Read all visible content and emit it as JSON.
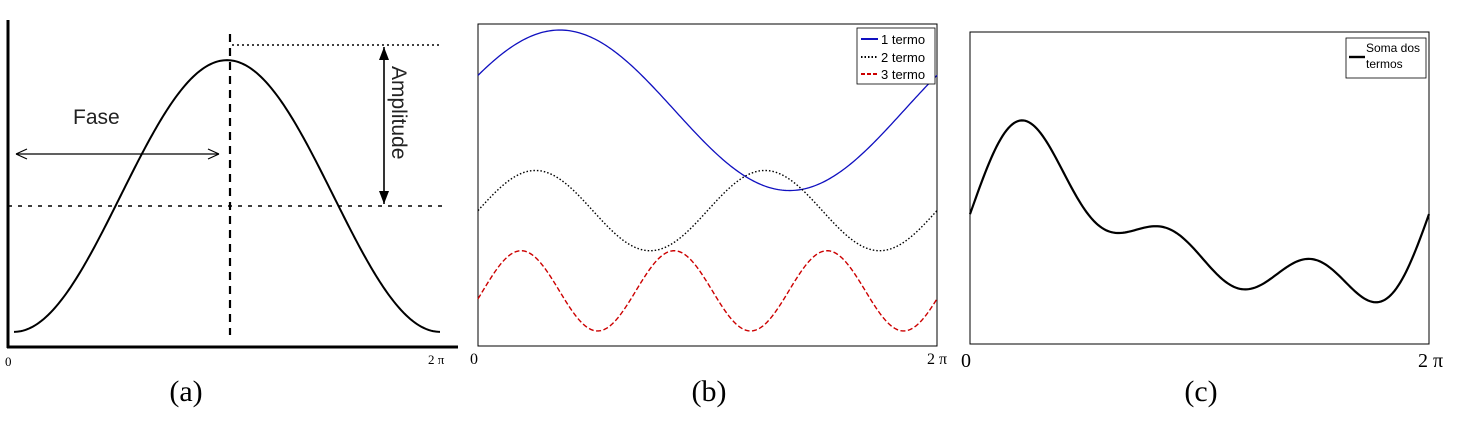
{
  "chart_data": [
    {
      "panel": "(a)",
      "type": "line",
      "caption": "(a)",
      "x_ticks": [
        "0",
        "2 π"
      ],
      "annotations": {
        "phase_label": "Fase",
        "amplitude_label": "Amplitude"
      },
      "series": [
        {
          "function": "cos",
          "x_range": [
            0,
            6.2832
          ],
          "offset": 0,
          "amplitude": 1,
          "frequency": 1,
          "phase": 3.1416,
          "color": "#000000",
          "style": "solid"
        }
      ],
      "xlim": [
        0,
        6.2832
      ],
      "ylim": [
        -1.2,
        1.2
      ],
      "grid": false
    },
    {
      "panel": "(b)",
      "type": "line",
      "caption": "(b)",
      "x_ticks": [
        "0",
        "2 π"
      ],
      "legend_position": "top-right",
      "series": [
        {
          "name": "1 termo",
          "function": "sin",
          "amplitude": 1.0,
          "frequency": 1,
          "phase": 0.45,
          "offset": 1.25,
          "color": "#1010c0",
          "style": "solid"
        },
        {
          "name": "2 termo",
          "function": "sin",
          "amplitude": 0.5,
          "frequency": 2,
          "phase": 0.0,
          "offset": 0.0,
          "color": "#000000",
          "style": "dotted"
        },
        {
          "name": "3 termo",
          "function": "sin",
          "amplitude": 0.5,
          "frequency": 3,
          "phase": -0.2,
          "offset": -1.0,
          "color": "#cc0000",
          "style": "dashed"
        }
      ],
      "xlim": [
        0,
        6.2832
      ],
      "ylim": [
        -1.6,
        2.4
      ],
      "grid": false
    },
    {
      "panel": "(c)",
      "type": "line",
      "caption": "(c)",
      "x_ticks": [
        "0",
        "2 π"
      ],
      "legend_position": "top-right",
      "series": [
        {
          "name": "Soma dos termos",
          "function": "sum_of_b",
          "color": "#000000",
          "style": "solid"
        }
      ],
      "xlim": [
        0,
        6.2832
      ],
      "ylim": [
        -1.6,
        2.4
      ],
      "grid": false
    }
  ]
}
